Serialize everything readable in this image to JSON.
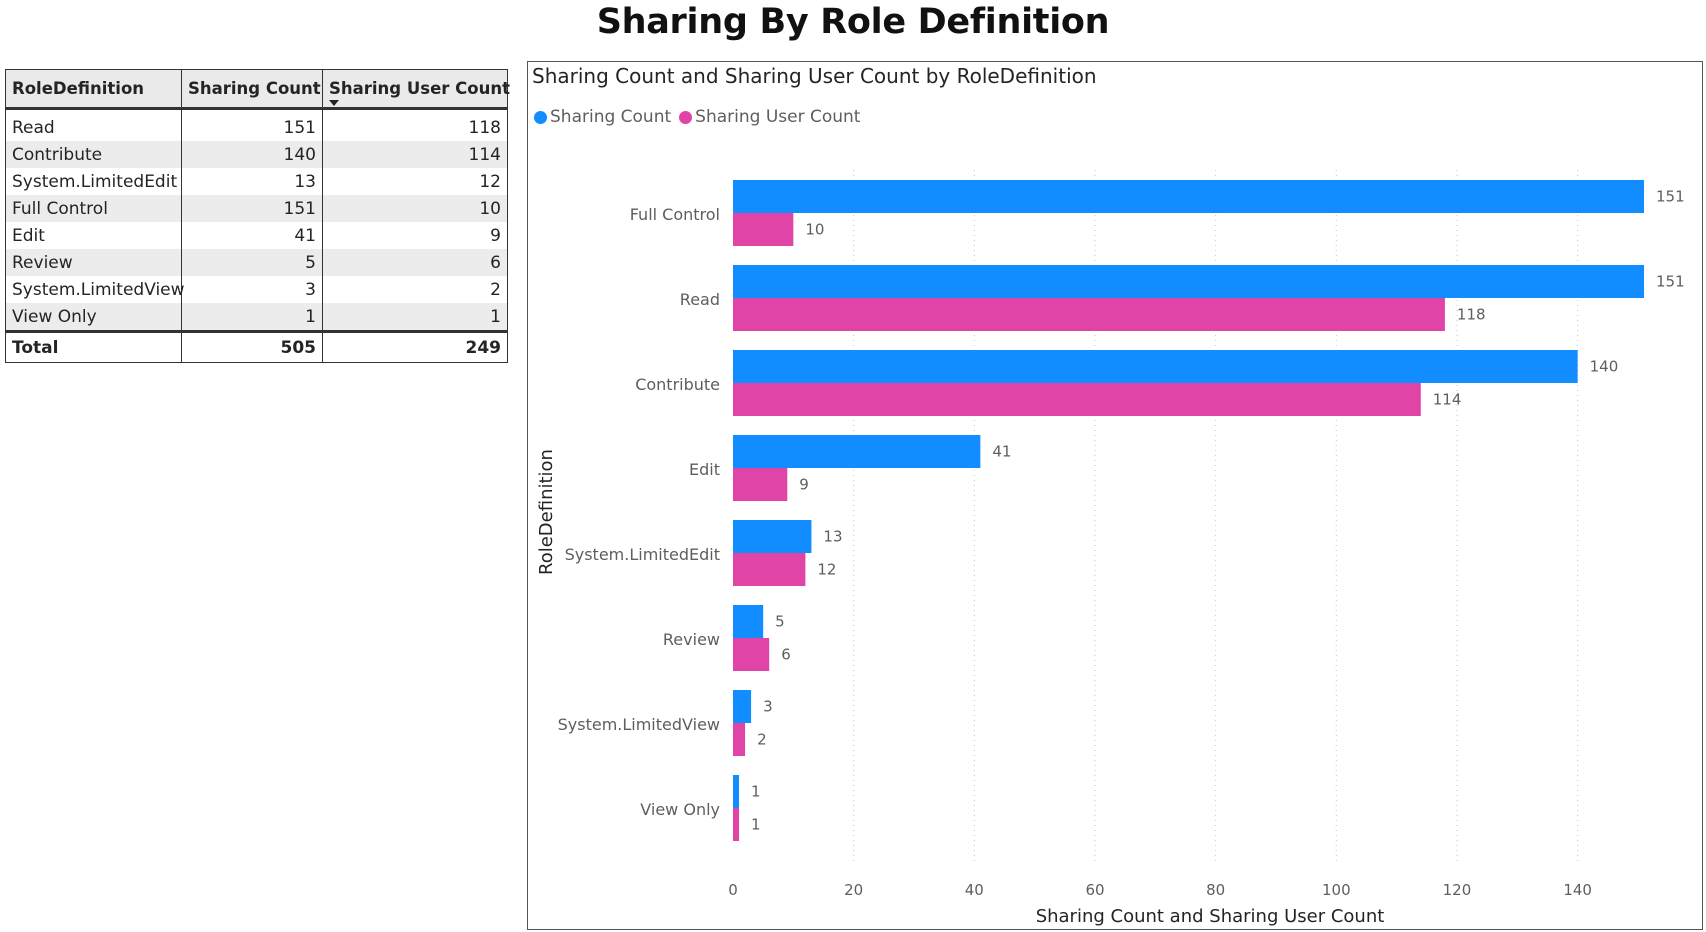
{
  "page": {
    "title": "Sharing By Role Definition"
  },
  "table": {
    "headers": [
      "RoleDefinition",
      "Sharing Count",
      "Sharing User Count"
    ],
    "rows": [
      [
        "Read",
        "151",
        "118"
      ],
      [
        "Contribute",
        "140",
        "114"
      ],
      [
        "System.LimitedEdit",
        "13",
        "12"
      ],
      [
        "Full Control",
        "151",
        "10"
      ],
      [
        "Edit",
        "41",
        "9"
      ],
      [
        "Review",
        "5",
        "6"
      ],
      [
        "System.LimitedView",
        "3",
        "2"
      ],
      [
        "View Only",
        "1",
        "1"
      ]
    ],
    "total": [
      "Total",
      "505",
      "249"
    ],
    "sorted_column": "Sharing User Count",
    "sort_direction": "descending"
  },
  "chart_data": {
    "type": "bar",
    "orientation": "horizontal",
    "title": "Sharing Count and Sharing User Count by RoleDefinition",
    "xlabel": "Sharing Count and Sharing User Count",
    "ylabel": "RoleDefinition",
    "categories": [
      "Full Control",
      "Read",
      "Contribute",
      "Edit",
      "System.LimitedEdit",
      "Review",
      "System.LimitedView",
      "View Only"
    ],
    "series": [
      {
        "name": "Sharing Count",
        "color": "#118DFF",
        "values": [
          151,
          151,
          140,
          41,
          13,
          5,
          3,
          1
        ]
      },
      {
        "name": "Sharing User Count",
        "color": "#E044A7",
        "values": [
          10,
          118,
          114,
          9,
          12,
          6,
          2,
          1
        ]
      }
    ],
    "xlim": [
      0,
      151
    ],
    "xticks": [
      0,
      20,
      40,
      60,
      80,
      100,
      120,
      140
    ],
    "grid": "vertical dotted",
    "legend_position": "top-left",
    "data_labels": true
  }
}
